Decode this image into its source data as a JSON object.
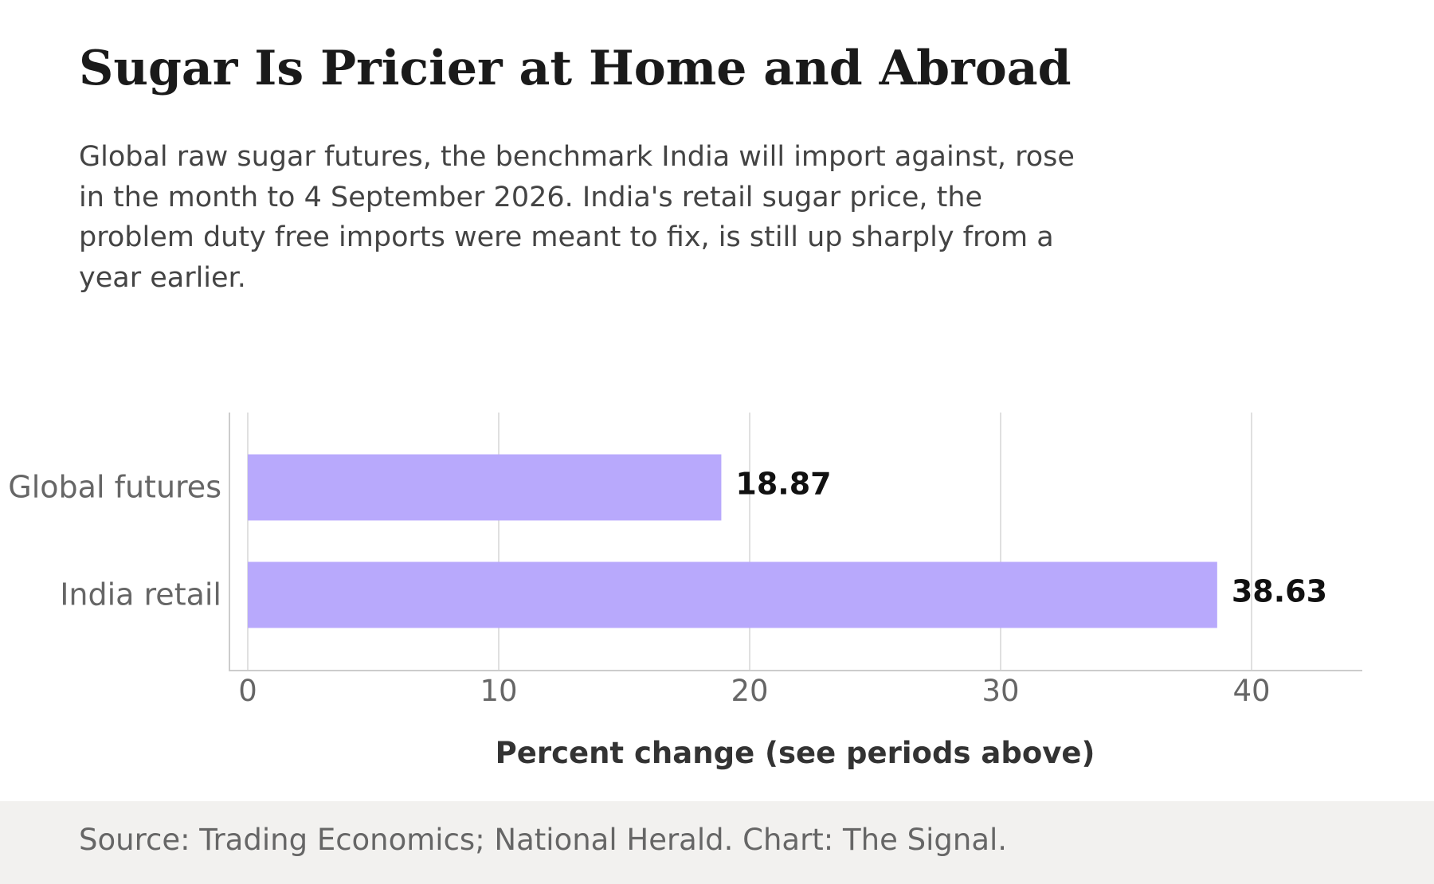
{
  "header": {
    "title": "Sugar Is Pricier at Home and Abroad",
    "subtitle": "Global raw sugar futures, the benchmark India will import against, rose in the month to 4 September 2026. India's retail sugar price, the problem duty free imports were meant to fix, is still up sharply from a year earlier."
  },
  "footer": {
    "source": "Source: Trading Economics; National Herald. Chart: The Signal."
  },
  "colors": {
    "bar": "#b8a9fc",
    "grid": "#e0e0e0",
    "axis": "#cccccc",
    "tick_text": "#666666",
    "value_text": "#111111",
    "xlabel_text": "#333333"
  },
  "chart_data": {
    "type": "bar",
    "orientation": "horizontal",
    "categories": [
      "Global futures",
      "India retail"
    ],
    "values": [
      18.87,
      38.63
    ],
    "value_labels": [
      "18.87",
      "38.63"
    ],
    "title": "Sugar Is Pricier at Home and Abroad",
    "xlabel": "Percent change (see periods above)",
    "ylabel": "",
    "xlim": [
      0,
      44.5
    ],
    "xticks": [
      0,
      10,
      20,
      30,
      40
    ],
    "xtick_labels": [
      "0",
      "10",
      "20",
      "30",
      "40"
    ],
    "grid": true,
    "legend": "none"
  }
}
